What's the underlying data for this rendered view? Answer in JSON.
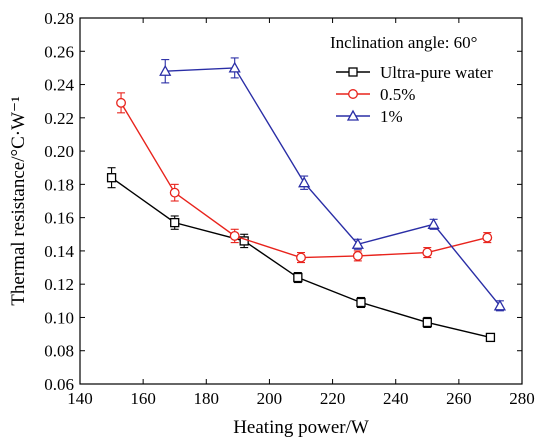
{
  "chart_data": {
    "type": "line",
    "xlabel": "Heating power/W",
    "ylabel": "Thermal resistance/°C·W⁻¹",
    "xlim": [
      140,
      280
    ],
    "ylim": [
      0.06,
      0.28
    ],
    "x_ticks": [
      "140",
      "160",
      "180",
      "200",
      "220",
      "240",
      "260",
      "280"
    ],
    "y_ticks": [
      "0.06",
      "0.08",
      "0.10",
      "0.12",
      "0.14",
      "0.16",
      "0.18",
      "0.20",
      "0.22",
      "0.24",
      "0.26",
      "0.28"
    ],
    "grid": false,
    "legend": {
      "title": "Inclination angle: 60°",
      "placement": "top-right"
    },
    "series": [
      {
        "name": "Ultra-pure water",
        "color": "#000000",
        "marker": "square",
        "x": [
          150,
          170,
          192,
          209,
          229,
          250,
          270
        ],
        "y": [
          0.184,
          0.157,
          0.146,
          0.124,
          0.109,
          0.097,
          0.088
        ],
        "err": [
          0.006,
          0.004,
          0.004,
          0.003,
          0.003,
          0.003,
          0.002
        ]
      },
      {
        "name": "0.5%",
        "color": "#e8231c",
        "marker": "circle",
        "x": [
          153,
          170,
          189,
          210,
          228,
          250,
          269
        ],
        "y": [
          0.229,
          0.175,
          0.149,
          0.136,
          0.137,
          0.139,
          0.148
        ],
        "err": [
          0.006,
          0.005,
          0.004,
          0.003,
          0.003,
          0.003,
          0.003
        ]
      },
      {
        "name": "1%",
        "color": "#2a2ea6",
        "marker": "triangle",
        "x": [
          167,
          189,
          211,
          228,
          252,
          273
        ],
        "y": [
          0.248,
          0.25,
          0.181,
          0.144,
          0.156,
          0.107
        ],
        "err": [
          0.007,
          0.006,
          0.004,
          0.003,
          0.003,
          0.003
        ]
      }
    ]
  }
}
